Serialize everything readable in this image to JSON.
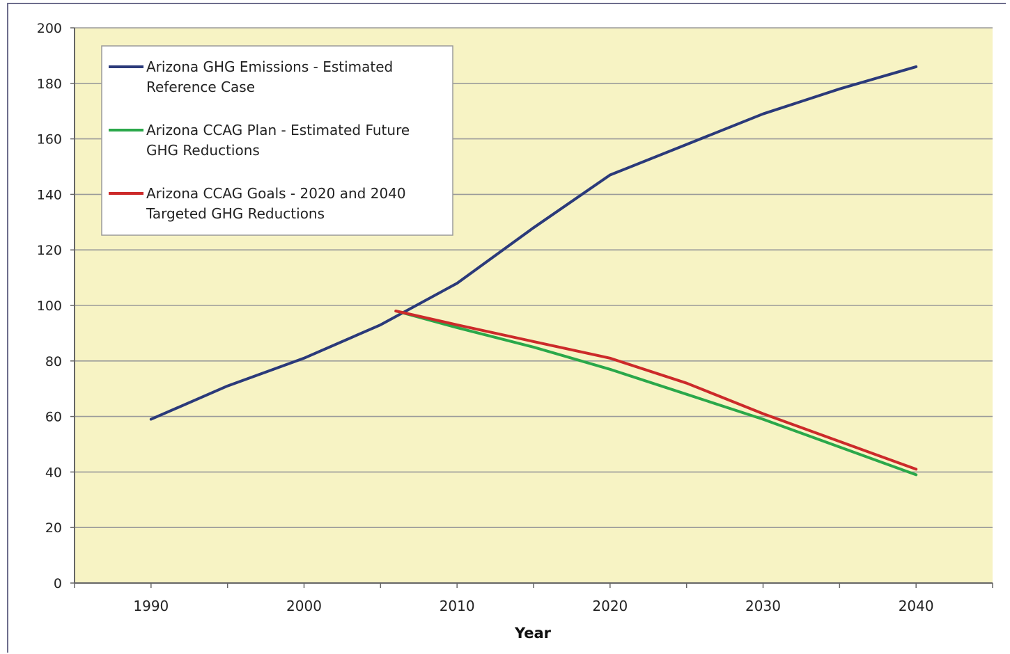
{
  "chart_data": {
    "type": "line",
    "title": "",
    "xlabel": "Year",
    "ylabel": "",
    "xlim": [
      1985,
      2045
    ],
    "ylim": [
      0,
      200
    ],
    "x_ticks": [
      "1990",
      "2000",
      "2010",
      "2020",
      "2030",
      "2040"
    ],
    "y_ticks": [
      "0",
      "20",
      "40",
      "60",
      "80",
      "100",
      "120",
      "140",
      "160",
      "180",
      "200"
    ],
    "grid": true,
    "legend_position": "top-left",
    "background": "#f7f3c4",
    "series": [
      {
        "name": "Arizona GHG Emissions - Estimated Reference Case",
        "legend_lines": [
          "Arizona GHG Emissions - Estimated",
          "Reference Case"
        ],
        "color": "#2b3a7a",
        "x": [
          1990,
          1995,
          2000,
          2005,
          2010,
          2015,
          2020,
          2025,
          2030,
          2035,
          2040
        ],
        "y": [
          59,
          71,
          81,
          93,
          108,
          128,
          147,
          158,
          169,
          178,
          186
        ]
      },
      {
        "name": "Arizona CCAG Plan - Estimated Future GHG Reductions",
        "legend_lines": [
          "Arizona CCAG Plan - Estimated Future",
          "GHG Reductions"
        ],
        "color": "#2aa84a",
        "x": [
          2006,
          2010,
          2015,
          2020,
          2025,
          2030,
          2035,
          2040
        ],
        "y": [
          98,
          92,
          85,
          77,
          68,
          59,
          49,
          39
        ]
      },
      {
        "name": "Arizona CCAG Goals - 2020 and 2040 Targeted GHG Reductions",
        "legend_lines": [
          "Arizona CCAG Goals - 2020 and 2040",
          "Targeted GHG Reductions"
        ],
        "color": "#cc2a2a",
        "x": [
          2006,
          2010,
          2015,
          2020,
          2025,
          2030,
          2035,
          2040
        ],
        "y": [
          98,
          93,
          87,
          81,
          72,
          61,
          51,
          41
        ]
      }
    ]
  }
}
